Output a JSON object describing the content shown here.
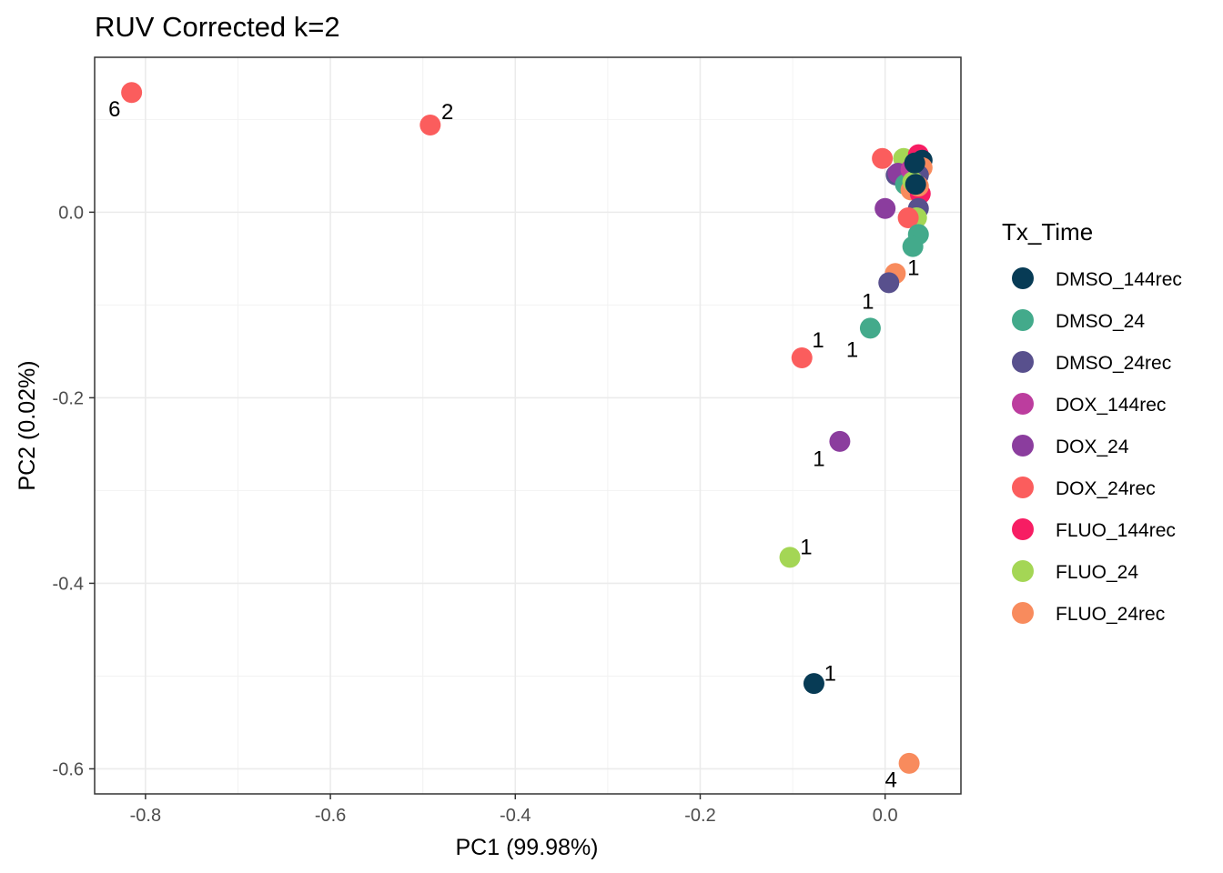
{
  "chart_data": {
    "type": "scatter",
    "title": "RUV Corrected k=2",
    "xlabel": "PC1 (99.98%)",
    "ylabel": "PC2 (0.02%)",
    "xlim": [
      -0.855,
      0.082
    ],
    "ylim": [
      -0.627,
      0.167
    ],
    "x_ticks": [
      -0.8,
      -0.6,
      -0.4,
      -0.2,
      0.0
    ],
    "x_tick_labels": [
      "-0.8",
      "-0.6",
      "-0.4",
      "-0.2",
      "0.0"
    ],
    "y_ticks": [
      -0.6,
      -0.4,
      -0.2,
      0.0
    ],
    "y_tick_labels": [
      "-0.6",
      "-0.4",
      "-0.2",
      "0.0"
    ],
    "grid": true,
    "legend": {
      "title": "Tx_Time",
      "placement": "right",
      "entries": [
        {
          "name": "DMSO_144rec",
          "color": "#073b55"
        },
        {
          "name": "DMSO_24",
          "color": "#43aa8b"
        },
        {
          "name": "DMSO_24rec",
          "color": "#58508d"
        },
        {
          "name": "DOX_144rec",
          "color": "#bc3d9e"
        },
        {
          "name": "DOX_24",
          "color": "#8b3d9e"
        },
        {
          "name": "DOX_24rec",
          "color": "#fb5d5d"
        },
        {
          "name": "FLUO_144rec",
          "color": "#f71d63"
        },
        {
          "name": "FLUO_24",
          "color": "#a4d655"
        },
        {
          "name": "FLUO_24rec",
          "color": "#f88b5d"
        }
      ]
    },
    "points": [
      {
        "group": "FLUO_24",
        "x": 0.02,
        "y": 0.058
      },
      {
        "group": "DOX_144rec",
        "x": 0.036,
        "y": 0.058
      },
      {
        "group": "FLUO_144rec",
        "x": 0.036,
        "y": 0.062
      },
      {
        "group": "DOX_24rec",
        "x": -0.003,
        "y": 0.058
      },
      {
        "group": "DMSO_24rec",
        "x": 0.012,
        "y": 0.04
      },
      {
        "group": "DMSO_144rec",
        "x": 0.04,
        "y": 0.056
      },
      {
        "group": "FLUO_24rec",
        "x": 0.04,
        "y": 0.048
      },
      {
        "group": "DOX_24",
        "x": 0.014,
        "y": 0.042
      },
      {
        "group": "DMSO_24",
        "x": 0.022,
        "y": 0.03
      },
      {
        "group": "DOX_144rec",
        "x": 0.028,
        "y": 0.046
      },
      {
        "group": "FLUO_24rec",
        "x": 0.028,
        "y": 0.024
      },
      {
        "group": "DMSO_24rec",
        "x": 0.036,
        "y": 0.04
      },
      {
        "group": "FLUO_144rec",
        "x": 0.038,
        "y": 0.02
      },
      {
        "group": "FLUO_24rec",
        "x": 0.036,
        "y": 0.028
      },
      {
        "group": "FLUO_24",
        "x": 0.03,
        "y": 0.033
      },
      {
        "group": "DMSO_144rec",
        "x": 0.032,
        "y": 0.053
      },
      {
        "group": "DMSO_144rec",
        "x": 0.033,
        "y": 0.03
      },
      {
        "group": "DOX_24",
        "x": 0.0,
        "y": 0.004
      },
      {
        "group": "DMSO_24rec",
        "x": 0.036,
        "y": 0.004
      },
      {
        "group": "FLUO_24",
        "x": 0.034,
        "y": -0.006
      },
      {
        "group": "DOX_24rec",
        "x": 0.025,
        "y": -0.006
      },
      {
        "group": "DMSO_24",
        "x": 0.036,
        "y": -0.024
      },
      {
        "group": "DMSO_24",
        "x": 0.03,
        "y": -0.037
      },
      {
        "group": "DOX_24rec",
        "x": -0.815,
        "y": 0.129,
        "label": "6"
      },
      {
        "group": "DOX_24rec",
        "x": -0.492,
        "y": 0.094,
        "label": "2"
      },
      {
        "group": "FLUO_24rec",
        "x": 0.011,
        "y": -0.066,
        "label": "1"
      },
      {
        "group": "DMSO_24rec",
        "x": 0.004,
        "y": -0.076,
        "label": "1"
      },
      {
        "group": "DMSO_24",
        "x": -0.016,
        "y": -0.125,
        "label": "1"
      },
      {
        "group": "DOX_24rec",
        "x": -0.09,
        "y": -0.157,
        "label": "1"
      },
      {
        "group": "DOX_24",
        "x": -0.049,
        "y": -0.247,
        "label": "1"
      },
      {
        "group": "FLUO_24",
        "x": -0.103,
        "y": -0.372,
        "label": "1"
      },
      {
        "group": "DMSO_144rec",
        "x": -0.077,
        "y": -0.508,
        "label": "1"
      },
      {
        "group": "FLUO_24rec",
        "x": 0.026,
        "y": -0.594,
        "label": "4"
      }
    ],
    "annotations": [
      {
        "text": "6",
        "x": -0.827,
        "y": 0.111,
        "anchor": "end"
      },
      {
        "text": "2",
        "x": -0.48,
        "y": 0.108,
        "anchor": "start"
      },
      {
        "text": "1",
        "x": 0.024,
        "y": -0.06,
        "anchor": "start"
      },
      {
        "text": "1",
        "x": -0.012,
        "y": -0.096,
        "anchor": "end"
      },
      {
        "text": "1",
        "x": -0.029,
        "y": -0.148,
        "anchor": "end"
      },
      {
        "text": "1",
        "x": -0.079,
        "y": -0.138,
        "anchor": "start"
      },
      {
        "text": "1",
        "x": -0.065,
        "y": -0.266,
        "anchor": "end"
      },
      {
        "text": "1",
        "x": -0.092,
        "y": -0.361,
        "anchor": "start"
      },
      {
        "text": "1",
        "x": -0.066,
        "y": -0.497,
        "anchor": "start"
      },
      {
        "text": "4",
        "x": 0.013,
        "y": -0.612,
        "anchor": "end"
      }
    ]
  }
}
